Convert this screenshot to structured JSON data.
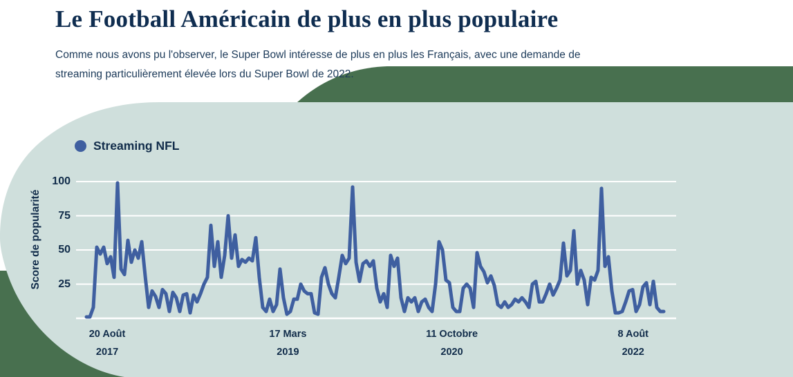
{
  "header": {
    "title": "Le Football Américain de plus en plus populaire",
    "subtitle_line1": "Comme nous avons pu l'observer, le Super Bowl intéresse de plus en plus les Français, avec une demande de",
    "subtitle_line2": "streaming particulièrement élevée lors du Super Bowl de 2022."
  },
  "colors": {
    "page_background": "#ffffff",
    "section_green": "#48704f",
    "panel_teal": "#cfdfdc",
    "series_blue": "#3f5fa0",
    "gridline": "#ffffff",
    "text_navy": "#112c4a"
  },
  "chart_data": {
    "type": "line",
    "title": "",
    "ylabel": "Score de popularité",
    "xlabel": "",
    "ylim": [
      0,
      100
    ],
    "grid": "horizontal-white",
    "legend_position": "top-left",
    "y_ticks": [
      100,
      75,
      50,
      25
    ],
    "x_ticks": [
      {
        "line1": "20 Août",
        "line2": "2017",
        "frac": 0.036
      },
      {
        "line1": "17 Mars",
        "line2": "2019",
        "frac": 0.349
      },
      {
        "line1": "11 Octobre",
        "line2": "2020",
        "frac": 0.633
      },
      {
        "line1": "8 Août",
        "line2": "2022",
        "frac": 0.947
      }
    ],
    "series": [
      {
        "name": "Streaming NFL",
        "color": "#3f5fa0",
        "values": [
          1,
          1,
          8,
          52,
          47,
          52,
          40,
          45,
          30,
          99,
          36,
          32,
          57,
          41,
          50,
          44,
          56,
          31,
          8,
          20,
          16,
          8,
          21,
          18,
          5,
          19,
          15,
          5,
          17,
          18,
          4,
          17,
          12,
          18,
          25,
          30,
          68,
          38,
          56,
          30,
          46,
          75,
          44,
          61,
          38,
          43,
          41,
          44,
          42,
          59,
          30,
          8,
          5,
          14,
          5,
          10,
          36,
          15,
          3,
          5,
          14,
          14,
          25,
          20,
          18,
          18,
          4,
          3,
          30,
          37,
          25,
          18,
          15,
          30,
          46,
          40,
          44,
          96,
          41,
          27,
          40,
          42,
          38,
          42,
          22,
          12,
          18,
          8,
          46,
          38,
          44,
          15,
          5,
          15,
          12,
          15,
          5,
          12,
          14,
          8,
          5,
          25,
          56,
          50,
          28,
          26,
          8,
          5,
          5,
          22,
          25,
          22,
          8,
          48,
          38,
          34,
          26,
          31,
          24,
          10,
          8,
          12,
          8,
          10,
          14,
          12,
          15,
          12,
          8,
          25,
          27,
          12,
          12,
          18,
          25,
          17,
          22,
          28,
          55,
          31,
          35,
          64,
          25,
          35,
          28,
          10,
          30,
          28,
          35,
          95,
          38,
          45,
          20,
          4,
          4,
          5,
          12,
          20,
          21,
          5,
          10,
          23,
          26,
          10,
          27,
          8,
          5,
          5
        ]
      }
    ]
  }
}
